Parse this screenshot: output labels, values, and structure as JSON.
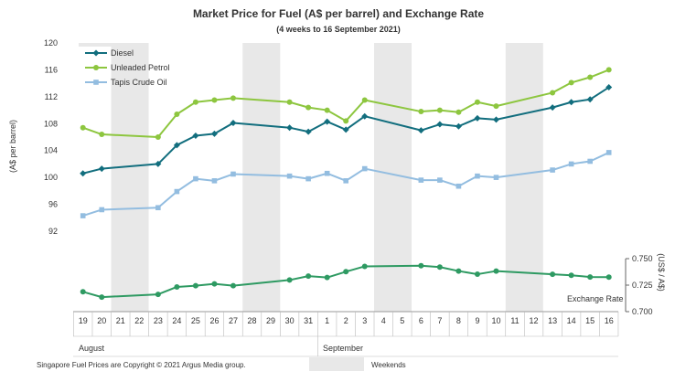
{
  "chart_data": {
    "type": "line",
    "title": "Market Price for Fuel (A$ per barrel) and Exchange  Rate",
    "subtitle": "(4 weeks to 16 September 2021)",
    "ylabel": "(A$ per barrel)",
    "ylabel_right": "(US$ / A$)",
    "ylim": [
      88,
      120
    ],
    "yticks": [
      92,
      96,
      100,
      104,
      108,
      112,
      116,
      120
    ],
    "ylim_right": [
      0.7,
      0.75
    ],
    "yticks_right": [
      "0.700",
      "0.725",
      "0.750"
    ],
    "x": [
      "19",
      "20",
      "21",
      "22",
      "23",
      "24",
      "25",
      "26",
      "27",
      "28",
      "29",
      "30",
      "31",
      "1",
      "2",
      "3",
      "4",
      "5",
      "6",
      "7",
      "8",
      "9",
      "10",
      "11",
      "12",
      "13",
      "14",
      "15",
      "16"
    ],
    "month_labels": [
      "August",
      "September"
    ],
    "weekend_indices": [
      [
        2,
        3
      ],
      [
        9,
        10
      ],
      [
        16,
        17
      ],
      [
        23,
        24
      ]
    ],
    "weekend_legend": "Weekends",
    "legend_position": "top-left",
    "grid": false,
    "series": [
      {
        "name": "Diesel",
        "color": "#126e7e",
        "marker": "diamond",
        "axis": "left",
        "points": [
          [
            0,
            100.6
          ],
          [
            1,
            101.3
          ],
          [
            4,
            102
          ],
          [
            5,
            104.8
          ],
          [
            6,
            106.2
          ],
          [
            7,
            106.5
          ],
          [
            8,
            108.1
          ],
          [
            11,
            107.4
          ],
          [
            12,
            106.8
          ],
          [
            13,
            108.3
          ],
          [
            14,
            107.1
          ],
          [
            15,
            109.1
          ],
          [
            18,
            107
          ],
          [
            19,
            107.9
          ],
          [
            20,
            107.6
          ],
          [
            21,
            108.8
          ],
          [
            22,
            108.6
          ],
          [
            25,
            110.4
          ],
          [
            26,
            111.2
          ],
          [
            27,
            111.6
          ],
          [
            28,
            113.4
          ]
        ]
      },
      {
        "name": "Unleaded Petrol",
        "color": "#8dc63f",
        "marker": "circle",
        "axis": "left",
        "points": [
          [
            0,
            107.4
          ],
          [
            1,
            106.4
          ],
          [
            4,
            106
          ],
          [
            5,
            109.4
          ],
          [
            6,
            111.2
          ],
          [
            7,
            111.5
          ],
          [
            8,
            111.8
          ],
          [
            11,
            111.2
          ],
          [
            12,
            110.4
          ],
          [
            13,
            110
          ],
          [
            14,
            108.4
          ],
          [
            15,
            111.5
          ],
          [
            18,
            109.8
          ],
          [
            19,
            110
          ],
          [
            20,
            109.7
          ],
          [
            21,
            111.2
          ],
          [
            22,
            110.6
          ],
          [
            25,
            112.6
          ],
          [
            26,
            114.1
          ],
          [
            27,
            114.9
          ],
          [
            28,
            116
          ]
        ]
      },
      {
        "name": "Tapis Crude Oil",
        "color": "#93bde0",
        "marker": "square",
        "axis": "left",
        "points": [
          [
            0,
            94.3
          ],
          [
            1,
            95.2
          ],
          [
            4,
            95.5
          ],
          [
            5,
            97.9
          ],
          [
            6,
            99.8
          ],
          [
            7,
            99.5
          ],
          [
            8,
            100.5
          ],
          [
            11,
            100.2
          ],
          [
            12,
            99.8
          ],
          [
            13,
            100.6
          ],
          [
            14,
            99.5
          ],
          [
            15,
            101.3
          ],
          [
            18,
            99.6
          ],
          [
            19,
            99.6
          ],
          [
            20,
            98.7
          ],
          [
            21,
            100.2
          ],
          [
            22,
            100
          ],
          [
            25,
            101.1
          ],
          [
            26,
            102
          ],
          [
            27,
            102.4
          ],
          [
            28,
            103.7
          ]
        ]
      },
      {
        "name": "Exchange  Rate",
        "color": "#2e9a62",
        "marker": "circle",
        "axis": "right",
        "points": [
          [
            0,
            0.7187
          ],
          [
            1,
            0.7137
          ],
          [
            4,
            0.7163
          ],
          [
            5,
            0.7233
          ],
          [
            6,
            0.7245
          ],
          [
            7,
            0.7262
          ],
          [
            8,
            0.7245
          ],
          [
            11,
            0.7298
          ],
          [
            12,
            0.7335
          ],
          [
            13,
            0.7322
          ],
          [
            14,
            0.7377
          ],
          [
            15,
            0.7427
          ],
          [
            18,
            0.7433
          ],
          [
            19,
            0.742
          ],
          [
            20,
            0.7383
          ],
          [
            21,
            0.7353
          ],
          [
            22,
            0.7383
          ],
          [
            25,
            0.7352
          ],
          [
            26,
            0.7343
          ],
          [
            27,
            0.7327
          ],
          [
            28,
            0.7325
          ]
        ]
      }
    ],
    "exchange_label": "Exchange  Rate"
  },
  "footer": {
    "copyright": "Singapore  Fuel Prices are Copyright © 2021 Argus Media group."
  }
}
